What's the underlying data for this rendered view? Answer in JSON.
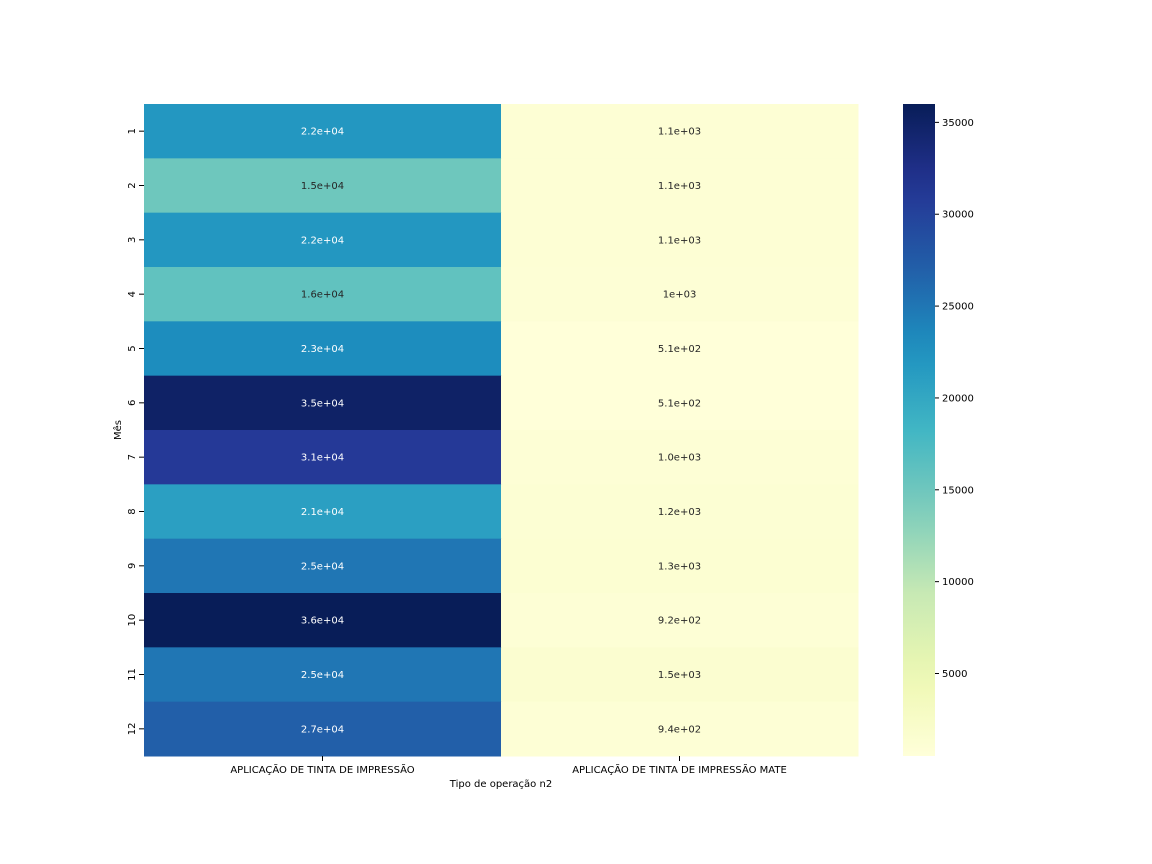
{
  "chart_data": {
    "type": "heatmap",
    "title": "",
    "xlabel": "Tipo de operação n2",
    "ylabel": "Mês",
    "x_categories": [
      "APLICAÇÃO DE TINTA DE IMPRESSÃO",
      "APLICAÇÃO DE TINTA DE IMPRESSÃO MATE"
    ],
    "y_categories": [
      "1",
      "2",
      "3",
      "4",
      "5",
      "6",
      "7",
      "8",
      "9",
      "10",
      "11",
      "12"
    ],
    "values": [
      [
        22000,
        1100
      ],
      [
        15000,
        1100
      ],
      [
        22000,
        1100
      ],
      [
        16000,
        1000
      ],
      [
        23000,
        510
      ],
      [
        35000,
        510
      ],
      [
        31000,
        1000
      ],
      [
        21000,
        1200
      ],
      [
        25000,
        1300
      ],
      [
        36000,
        920
      ],
      [
        25000,
        1500
      ],
      [
        27000,
        940
      ]
    ],
    "annotations": [
      [
        "2.2e+04",
        "1.1e+03"
      ],
      [
        "1.5e+04",
        "1.1e+03"
      ],
      [
        "2.2e+04",
        "1.1e+03"
      ],
      [
        "1.6e+04",
        "1e+03"
      ],
      [
        "2.3e+04",
        "5.1e+02"
      ],
      [
        "3.5e+04",
        "5.1e+02"
      ],
      [
        "3.1e+04",
        "1.0e+03"
      ],
      [
        "2.1e+04",
        "1.2e+03"
      ],
      [
        "2.5e+04",
        "1.3e+03"
      ],
      [
        "3.6e+04",
        "9.2e+02"
      ],
      [
        "2.5e+04",
        "1.5e+03"
      ],
      [
        "2.7e+04",
        "9.4e+02"
      ]
    ],
    "colormap": "YlGnBu",
    "colorbar": {
      "range": [
        510,
        36000
      ],
      "ticks": [
        5000,
        10000,
        15000,
        20000,
        25000,
        30000,
        35000
      ],
      "tick_labels": [
        "5000",
        "10000",
        "15000",
        "20000",
        "25000",
        "30000",
        "35000"
      ]
    },
    "grid": false,
    "legend": "colorbar-right"
  }
}
